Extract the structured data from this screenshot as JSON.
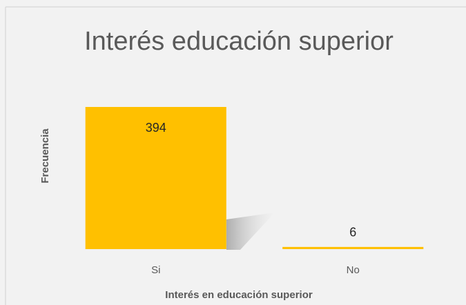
{
  "chart_data": {
    "type": "bar",
    "title": "Interés educación superior",
    "x_label": "Interés en educación superior",
    "y_label": "Frecuencia",
    "categories": [
      "Si",
      "No"
    ],
    "values": [
      394,
      6
    ],
    "color": "#ffc000"
  }
}
